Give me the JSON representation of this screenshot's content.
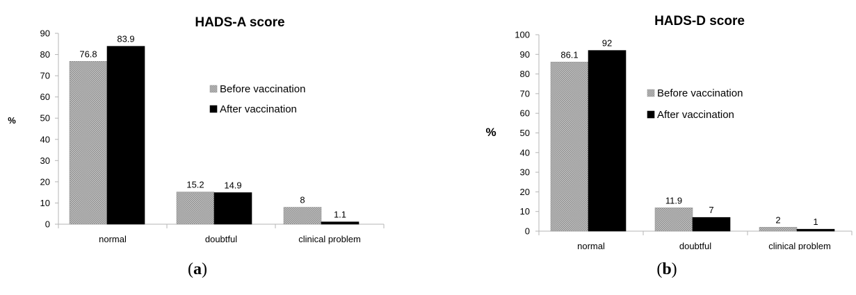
{
  "colors": {
    "before_fill": "#c9c9c9",
    "before_dot": "#8a8a8a",
    "after_fill": "#000000",
    "axis": "#b5b5b5"
  },
  "captions": {
    "a_open": "(",
    "a_letter": "a",
    "a_close": ")",
    "b_open": "(",
    "b_letter": "b",
    "b_close": ")"
  },
  "chart_data": [
    {
      "type": "bar",
      "title": "HADS-A score",
      "ylabel": "%",
      "ylim": [
        0,
        90
      ],
      "yticks": [
        0,
        10,
        20,
        30,
        40,
        50,
        60,
        70,
        80,
        90
      ],
      "categories": [
        "normal",
        "doubtful",
        "clinical problem"
      ],
      "series": [
        {
          "name": "Before vaccination",
          "values": [
            76.8,
            15.2,
            8
          ],
          "labels": [
            "76.8",
            "15.2",
            "8"
          ]
        },
        {
          "name": "After vaccination",
          "values": [
            83.9,
            14.9,
            1.1
          ],
          "labels": [
            "83.9",
            "14.9",
            "1.1"
          ]
        }
      ],
      "legend": "right",
      "grid": false
    },
    {
      "type": "bar",
      "title": "HADS-D score",
      "ylabel": "%",
      "ylim": [
        0,
        100
      ],
      "yticks": [
        0,
        10,
        20,
        30,
        40,
        50,
        60,
        70,
        80,
        90,
        100
      ],
      "categories": [
        "normal",
        "doubtful",
        "clinical problem"
      ],
      "series": [
        {
          "name": "Before vaccination",
          "values": [
            86.1,
            11.9,
            2
          ],
          "labels": [
            "86.1",
            "11.9",
            "2"
          ]
        },
        {
          "name": "After vaccination",
          "values": [
            92,
            7,
            1
          ],
          "labels": [
            "92",
            "7",
            "1"
          ]
        }
      ],
      "legend": "right",
      "grid": false
    }
  ]
}
